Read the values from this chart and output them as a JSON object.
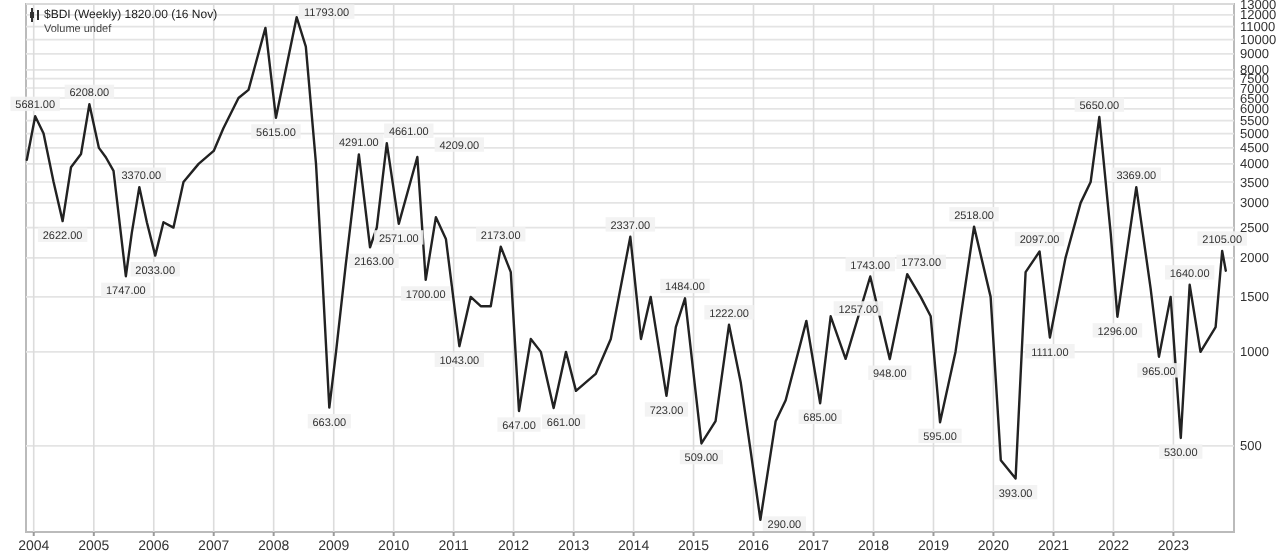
{
  "chart_data": {
    "type": "line",
    "title": "$BDI (Weekly) 1820.00 (16 Nov)",
    "subtitle": "Volume undef",
    "log": true,
    "grid": true,
    "marker": "none",
    "line_style": "solid",
    "xlim": [
      "2003-11-15",
      "2024-01-05"
    ],
    "ylim": [
      265,
      13000
    ],
    "xticks": [
      "2004",
      "2005",
      "2006",
      "2007",
      "2008",
      "2009",
      "2010",
      "2011",
      "2012",
      "2013",
      "2014",
      "2015",
      "2016",
      "2017",
      "2018",
      "2019",
      "2020",
      "2021",
      "2022",
      "2023"
    ],
    "yticks": [
      500,
      1000,
      1500,
      2000,
      2500,
      3000,
      3500,
      4000,
      4500,
      5000,
      5500,
      6000,
      6500,
      7000,
      7500,
      8000,
      9000,
      10000,
      11000,
      12000,
      13000
    ],
    "x": [
      "2003-11-20",
      "2004-01-10",
      "2004-03-01",
      "2004-05-01",
      "2004-06-25",
      "2004-08-15",
      "2004-10-15",
      "2004-12-05",
      "2005-02-01",
      "2005-03-15",
      "2005-05-01",
      "2005-07-15",
      "2005-08-20",
      "2005-10-05",
      "2005-11-20",
      "2006-01-10",
      "2006-03-01",
      "2006-05-01",
      "2006-07-01",
      "2006-10-01",
      "2007-01-01",
      "2007-03-01",
      "2007-06-01",
      "2007-08-01",
      "2007-11-12",
      "2008-01-15",
      "2008-03-15",
      "2008-05-20",
      "2008-07-15",
      "2008-09-15",
      "2008-10-20",
      "2008-12-05",
      "2009-01-15",
      "2009-03-15",
      "2009-06-03",
      "2009-08-10",
      "2009-09-20",
      "2009-11-20",
      "2010-02-01",
      "2010-05-25",
      "2010-07-15",
      "2010-09-15",
      "2010-11-15",
      "2011-02-05",
      "2011-04-15",
      "2011-06-15",
      "2011-08-15",
      "2011-10-15",
      "2011-12-15",
      "2012-02-03",
      "2012-04-15",
      "2012-06-15",
      "2012-09-01",
      "2012-11-15",
      "2013-01-15",
      "2013-05-15",
      "2013-08-15",
      "2013-12-12",
      "2014-02-15",
      "2014-04-15",
      "2014-07-20",
      "2014-09-15",
      "2014-11-10",
      "2015-02-18",
      "2015-05-15",
      "2015-08-05",
      "2015-10-15",
      "2015-12-15",
      "2016-02-12",
      "2016-05-15",
      "2016-07-15",
      "2016-11-18",
      "2017-02-10",
      "2017-04-15",
      "2017-07-15",
      "2017-12-12",
      "2018-04-10",
      "2018-07-25",
      "2018-10-15",
      "2018-12-15",
      "2019-02-10",
      "2019-05-15",
      "2019-09-05",
      "2019-12-15",
      "2020-02-15",
      "2020-05-15",
      "2020-07-15",
      "2020-10-08",
      "2020-12-10",
      "2021-03-15",
      "2021-06-15",
      "2021-08-15",
      "2021-10-07",
      "2021-12-15",
      "2022-01-25",
      "2022-05-20",
      "2022-08-15",
      "2022-10-05",
      "2022-12-15",
      "2023-02-15",
      "2023-04-10",
      "2023-06-15",
      "2023-09-15",
      "2023-10-25",
      "2023-11-16"
    ],
    "series": [
      {
        "color": "#222222",
        "values": [
          4120,
          5681,
          5000,
          3500,
          2622,
          3900,
          4300,
          6208,
          4500,
          4200,
          3800,
          1747,
          2400,
          3370,
          2600,
          2033,
          2600,
          2500,
          3500,
          4000,
          4400,
          5200,
          6500,
          6900,
          10900,
          5615,
          8000,
          11793,
          9500,
          4000,
          1900,
          663,
          1000,
          1900,
          4291,
          2163,
          2500,
          4661,
          2571,
          4209,
          1700,
          2700,
          2300,
          1043,
          1500,
          1400,
          1400,
          2173,
          1800,
          647,
          1100,
          1000,
          661,
          1000,
          750,
          850,
          1100,
          2337,
          1100,
          1500,
          723,
          1200,
          1484,
          509,
          600,
          1222,
          800,
          480,
          290,
          600,
          700,
          1257,
          685,
          1300,
          950,
          1743,
          948,
          1773,
          1500,
          1300,
          595,
          1000,
          2518,
          1500,
          450,
          393,
          1800,
          2097,
          1111,
          2000,
          3000,
          3500,
          5650,
          2400,
          1296,
          3369,
          1600,
          965,
          1500,
          530,
          1640,
          1000,
          1200,
          2105,
          1820
        ]
      }
    ],
    "annotations": [
      {
        "text": "5681.00",
        "x": "2004-01-10",
        "y": 5681
      },
      {
        "text": "2622.00",
        "x": "2004-06-25",
        "y": 2622
      },
      {
        "text": "6208.00",
        "x": "2004-12-05",
        "y": 6208
      },
      {
        "text": "1747.00",
        "x": "2005-07-15",
        "y": 1747
      },
      {
        "text": "3370.00",
        "x": "2005-10-05",
        "y": 3370
      },
      {
        "text": "2033.00",
        "x": "2006-01-10",
        "y": 2033
      },
      {
        "text": "5615.00",
        "x": "2008-01-15",
        "y": 5615
      },
      {
        "text": "11793.00",
        "x": "2008-05-20",
        "y": 11793
      },
      {
        "text": "663.00",
        "x": "2008-12-05",
        "y": 663
      },
      {
        "text": "4291.00",
        "x": "2009-06-03",
        "y": 4291
      },
      {
        "text": "2163.00",
        "x": "2009-08-10",
        "y": 2163
      },
      {
        "text": "4661.00",
        "x": "2009-11-20",
        "y": 4661
      },
      {
        "text": "2571.00",
        "x": "2010-02-01",
        "y": 2571
      },
      {
        "text": "4209.00",
        "x": "2010-05-25",
        "y": 4209
      },
      {
        "text": "1700.00",
        "x": "2010-07-15",
        "y": 1700
      },
      {
        "text": "1043.00",
        "x": "2011-02-05",
        "y": 1043
      },
      {
        "text": "2173.00",
        "x": "2011-10-15",
        "y": 2173
      },
      {
        "text": "647.00",
        "x": "2012-02-03",
        "y": 647
      },
      {
        "text": "661.00",
        "x": "2012-09-01",
        "y": 661
      },
      {
        "text": "2337.00",
        "x": "2013-12-12",
        "y": 2337
      },
      {
        "text": "723.00",
        "x": "2014-07-20",
        "y": 723
      },
      {
        "text": "1484.00",
        "x": "2014-11-10",
        "y": 1484
      },
      {
        "text": "509.00",
        "x": "2015-02-18",
        "y": 509
      },
      {
        "text": "1222.00",
        "x": "2015-08-05",
        "y": 1222
      },
      {
        "text": "290.00",
        "x": "2016-02-12",
        "y": 290
      },
      {
        "text": "1257.00",
        "x": "2016-11-18",
        "y": 1257
      },
      {
        "text": "685.00",
        "x": "2017-02-10",
        "y": 685
      },
      {
        "text": "1743.00",
        "x": "2017-12-12",
        "y": 1743
      },
      {
        "text": "948.00",
        "x": "2018-04-10",
        "y": 948
      },
      {
        "text": "1773.00",
        "x": "2018-07-25",
        "y": 1773
      },
      {
        "text": "595.00",
        "x": "2019-02-10",
        "y": 595
      },
      {
        "text": "2518.00",
        "x": "2019-09-05",
        "y": 2518
      },
      {
        "text": "393.00",
        "x": "2020-05-15",
        "y": 393
      },
      {
        "text": "2097.00",
        "x": "2020-10-08",
        "y": 2097
      },
      {
        "text": "1111.00",
        "x": "2020-12-10",
        "y": 1111
      },
      {
        "text": "5650.00",
        "x": "2021-10-07",
        "y": 5650
      },
      {
        "text": "1296.00",
        "x": "2022-01-25",
        "y": 1296
      },
      {
        "text": "3369.00",
        "x": "2022-05-20",
        "y": 3369
      },
      {
        "text": "965.00",
        "x": "2022-10-05",
        "y": 965
      },
      {
        "text": "530.00",
        "x": "2023-02-15",
        "y": 530
      },
      {
        "text": "1640.00",
        "x": "2023-04-10",
        "y": 1640
      },
      {
        "text": "2105.00",
        "x": "2023-10-25",
        "y": 2105
      }
    ]
  }
}
